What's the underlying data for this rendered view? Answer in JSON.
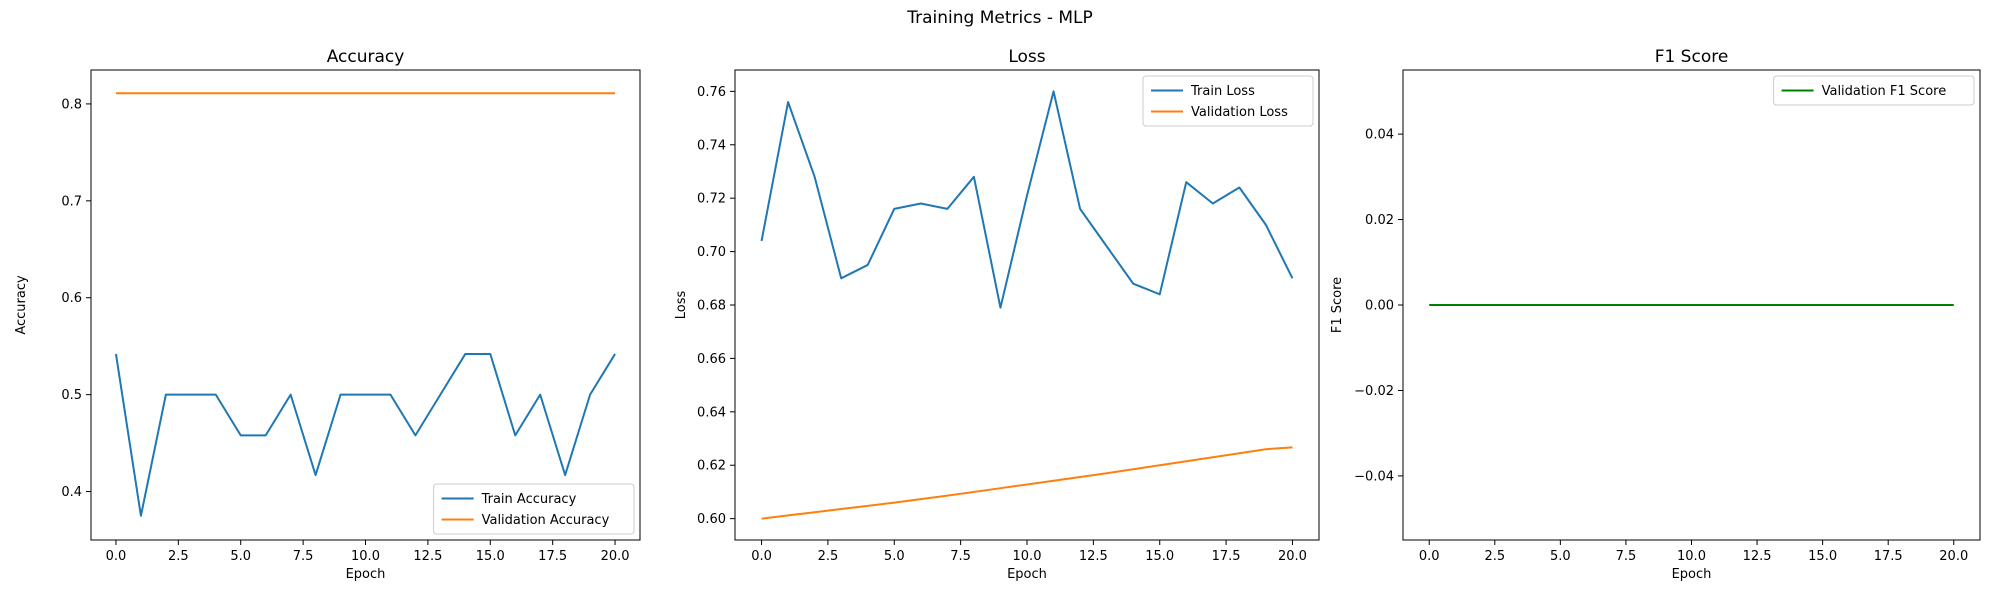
{
  "figure": {
    "title": "Training Metrics - MLP"
  },
  "chart_data": [
    {
      "type": "line",
      "title": "Accuracy",
      "xlabel": "Epoch",
      "ylabel": "Accuracy",
      "xlim": [
        -1,
        21
      ],
      "ylim": [
        0.35,
        0.835
      ],
      "xticks": [
        0,
        2.5,
        5,
        7.5,
        10,
        12.5,
        15,
        17.5,
        20
      ],
      "xtick_labels": [
        "0.0",
        "2.5",
        "5.0",
        "7.5",
        "10.0",
        "12.5",
        "15.0",
        "17.5",
        "20.0"
      ],
      "yticks": [
        0.4,
        0.5,
        0.6,
        0.7,
        0.8
      ],
      "ytick_labels": [
        "0.4",
        "0.5",
        "0.6",
        "0.7",
        "0.8"
      ],
      "legend_position": "lower-right",
      "grid": false,
      "x": [
        0,
        1,
        2,
        3,
        4,
        5,
        6,
        7,
        8,
        9,
        10,
        11,
        12,
        13,
        14,
        15,
        16,
        17,
        18,
        19,
        20
      ],
      "series": [
        {
          "name": "Train Accuracy",
          "color": "#1f77b4",
          "values": [
            0.542,
            0.375,
            0.5,
            0.5,
            0.5,
            0.458,
            0.458,
            0.5,
            0.417,
            0.5,
            0.5,
            0.5,
            0.458,
            0.5,
            0.542,
            0.542,
            0.458,
            0.5,
            0.417,
            0.5,
            0.542
          ]
        },
        {
          "name": "Validation Accuracy",
          "color": "#ff7f0e",
          "values": [
            0.811,
            0.811,
            0.811,
            0.811,
            0.811,
            0.811,
            0.811,
            0.811,
            0.811,
            0.811,
            0.811,
            0.811,
            0.811,
            0.811,
            0.811,
            0.811,
            0.811,
            0.811,
            0.811,
            0.811,
            0.811
          ]
        }
      ]
    },
    {
      "type": "line",
      "title": "Loss",
      "xlabel": "Epoch",
      "ylabel": "Loss",
      "xlim": [
        -1,
        21
      ],
      "ylim": [
        0.592,
        0.768
      ],
      "xticks": [
        0,
        2.5,
        5,
        7.5,
        10,
        12.5,
        15,
        17.5,
        20
      ],
      "xtick_labels": [
        "0.0",
        "2.5",
        "5.0",
        "7.5",
        "10.0",
        "12.5",
        "15.0",
        "17.5",
        "20.0"
      ],
      "yticks": [
        0.6,
        0.62,
        0.64,
        0.66,
        0.68,
        0.7,
        0.72,
        0.74,
        0.76
      ],
      "ytick_labels": [
        "0.60",
        "0.62",
        "0.64",
        "0.66",
        "0.68",
        "0.70",
        "0.72",
        "0.74",
        "0.76"
      ],
      "legend_position": "upper-right",
      "grid": false,
      "x": [
        0,
        1,
        2,
        3,
        4,
        5,
        6,
        7,
        8,
        9,
        10,
        11,
        12,
        13,
        14,
        15,
        16,
        17,
        18,
        19,
        20
      ],
      "series": [
        {
          "name": "Train Loss",
          "color": "#1f77b4",
          "values": [
            0.704,
            0.756,
            0.728,
            0.69,
            0.695,
            0.716,
            0.718,
            0.716,
            0.728,
            0.679,
            0.721,
            0.76,
            0.716,
            0.702,
            0.688,
            0.684,
            0.726,
            0.718,
            0.724,
            0.71,
            0.69
          ]
        },
        {
          "name": "Validation Loss",
          "color": "#ff7f0e",
          "values": [
            0.6,
            0.6012,
            0.6024,
            0.6036,
            0.6048,
            0.606,
            0.6073,
            0.6086,
            0.61,
            0.6114,
            0.6128,
            0.6142,
            0.6156,
            0.617,
            0.6185,
            0.62,
            0.6215,
            0.623,
            0.6245,
            0.626,
            0.6267
          ]
        }
      ]
    },
    {
      "type": "line",
      "title": "F1 Score",
      "xlabel": "Epoch",
      "ylabel": "F1 Score",
      "xlim": [
        -1,
        21
      ],
      "ylim": [
        -0.055,
        0.055
      ],
      "xticks": [
        0,
        2.5,
        5,
        7.5,
        10,
        12.5,
        15,
        17.5,
        20
      ],
      "xtick_labels": [
        "0.0",
        "2.5",
        "5.0",
        "7.5",
        "10.0",
        "12.5",
        "15.0",
        "17.5",
        "20.0"
      ],
      "yticks": [
        -0.04,
        -0.02,
        0.0,
        0.02,
        0.04
      ],
      "ytick_labels": [
        "−0.04",
        "−0.02",
        "0.00",
        "0.02",
        "0.04"
      ],
      "legend_position": "upper-right",
      "grid": false,
      "x": [
        0,
        1,
        2,
        3,
        4,
        5,
        6,
        7,
        8,
        9,
        10,
        11,
        12,
        13,
        14,
        15,
        16,
        17,
        18,
        19,
        20
      ],
      "series": [
        {
          "name": "Validation F1 Score",
          "color": "#008000",
          "values": [
            0,
            0,
            0,
            0,
            0,
            0,
            0,
            0,
            0,
            0,
            0,
            0,
            0,
            0,
            0,
            0,
            0,
            0,
            0,
            0,
            0
          ]
        }
      ]
    }
  ]
}
